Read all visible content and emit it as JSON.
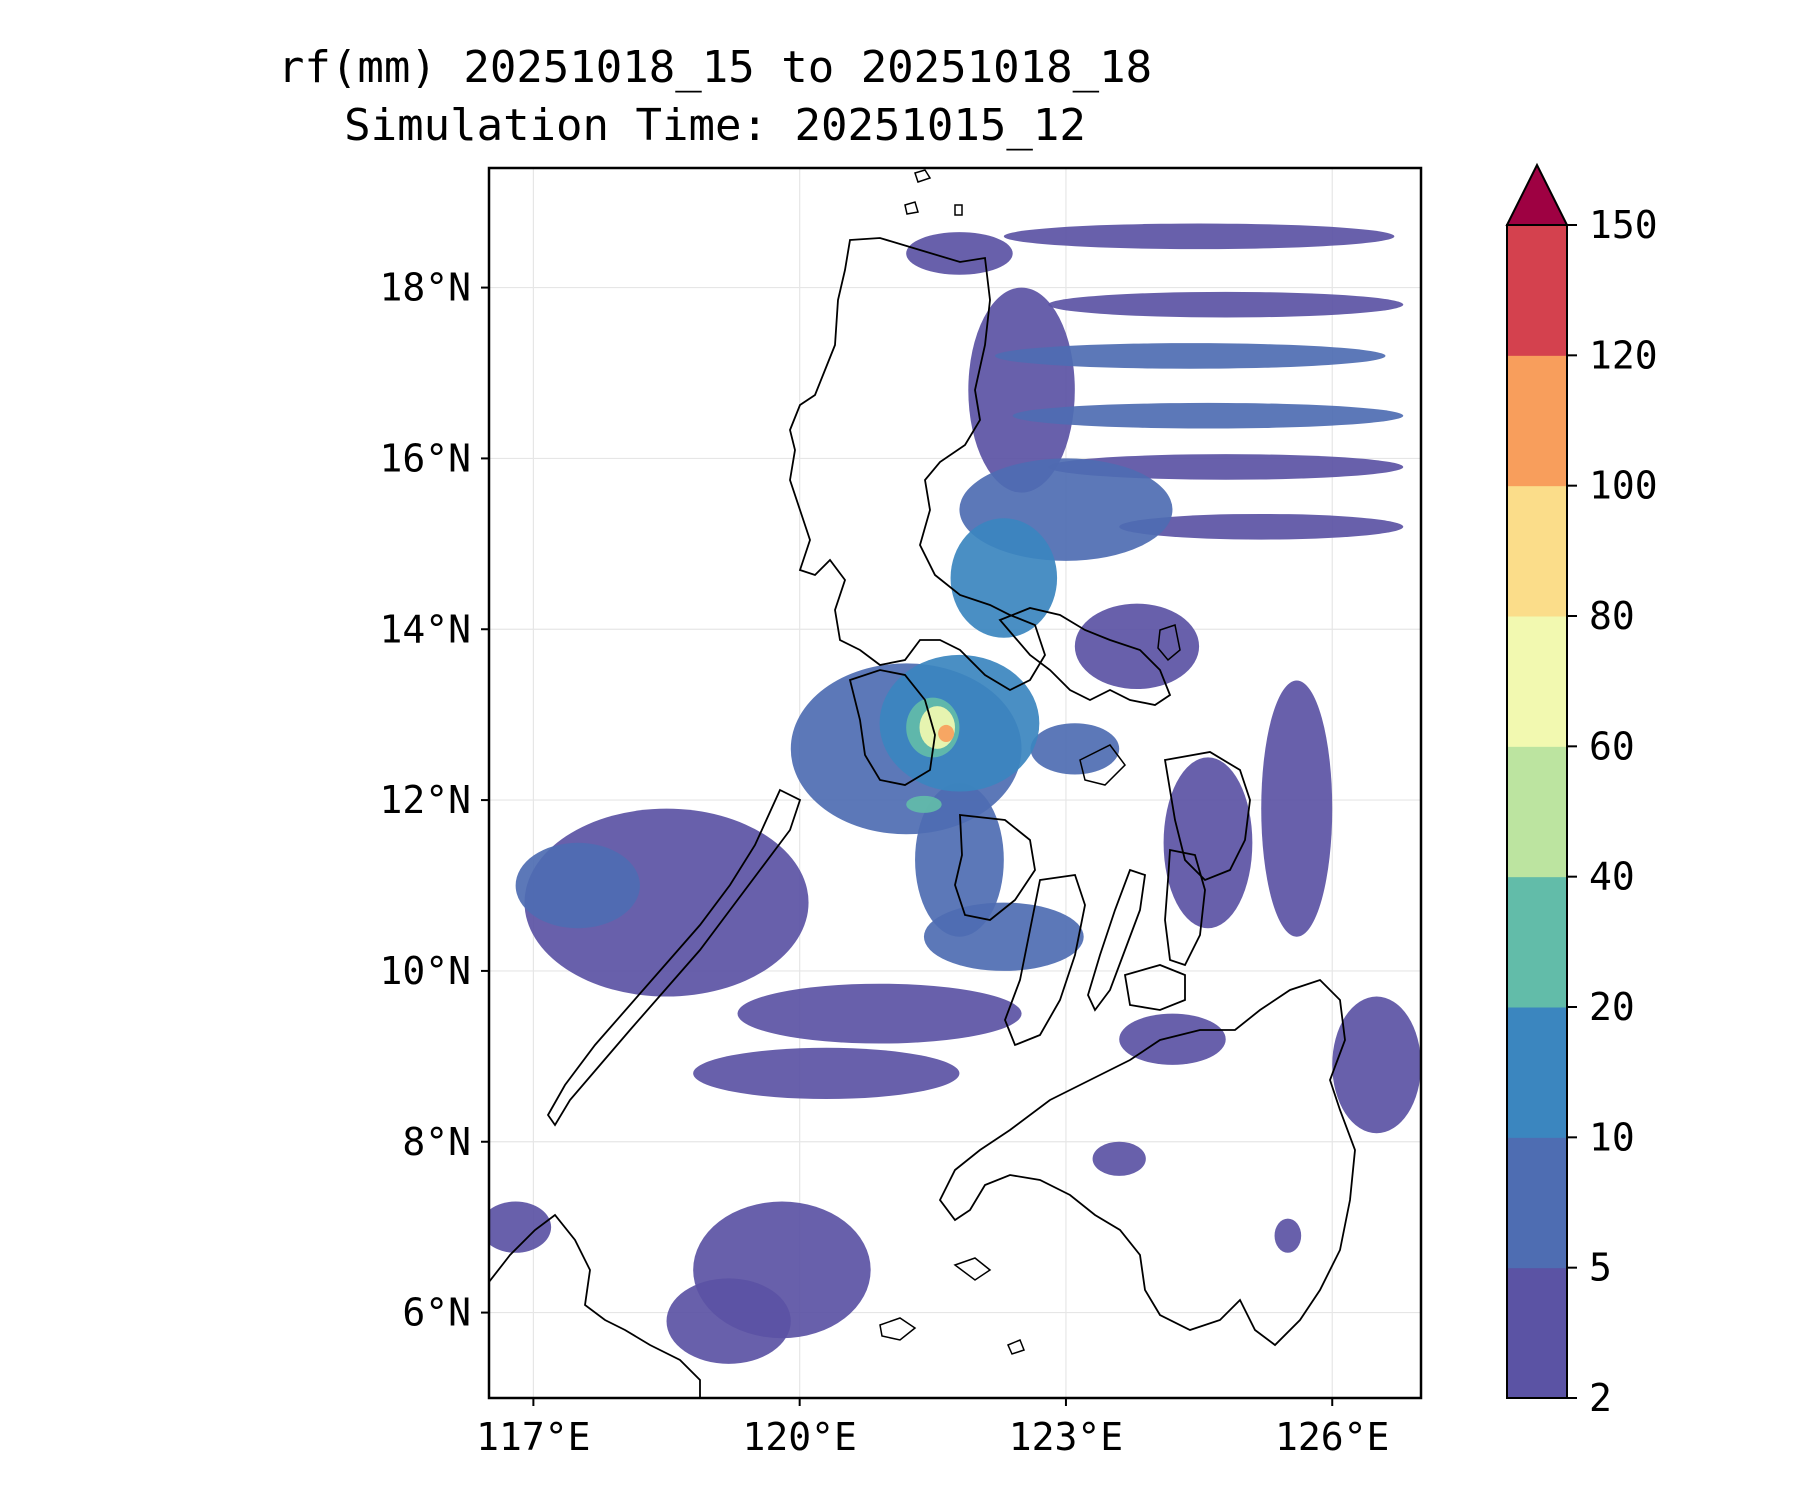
{
  "title": {
    "line1": "rf(mm) 20251018_15 to 20251018_18",
    "line2": "Simulation Time: 20251015_12"
  },
  "map": {
    "lon_range": [
      116.5,
      127.0
    ],
    "lat_range": [
      5.0,
      19.4
    ],
    "lon_ticks": [
      "117°E",
      "120°E",
      "123°E",
      "126°E"
    ],
    "lon_tick_values": [
      117,
      120,
      123,
      126
    ],
    "lat_ticks": [
      "6°N",
      "8°N",
      "10°N",
      "12°N",
      "14°N",
      "16°N",
      "18°N"
    ],
    "lat_tick_values": [
      6,
      8,
      10,
      12,
      14,
      16,
      18
    ],
    "grid": true,
    "coastline_color": "#000000"
  },
  "colorbar": {
    "levels": [
      "2",
      "5",
      "10",
      "20",
      "40",
      "60",
      "80",
      "100",
      "120",
      "150"
    ],
    "colors": [
      "#5b53a4",
      "#4e6db2",
      "#3b86bf",
      "#62bca9",
      "#bce4a0",
      "#f2f9b0",
      "#fbdd8a",
      "#f89e5c",
      "#d4414e",
      "#9e0142"
    ],
    "extend": "max"
  },
  "rain_cells": [
    {
      "lon": 121.8,
      "lat": 18.4,
      "rx": 0.6,
      "ry": 0.25,
      "level": 1
    },
    {
      "lon": 122.5,
      "lat": 16.8,
      "rx": 0.6,
      "ry": 1.2,
      "level": 1
    },
    {
      "lon": 124.5,
      "lat": 18.6,
      "rx": 2.2,
      "ry": 0.15,
      "level": 1
    },
    {
      "lon": 124.8,
      "lat": 17.8,
      "rx": 2.0,
      "ry": 0.15,
      "level": 1
    },
    {
      "lon": 124.4,
      "lat": 17.2,
      "rx": 2.2,
      "ry": 0.15,
      "level": 2
    },
    {
      "lon": 124.6,
      "lat": 16.5,
      "rx": 2.2,
      "ry": 0.15,
      "level": 2
    },
    {
      "lon": 124.8,
      "lat": 15.9,
      "rx": 2.0,
      "ry": 0.15,
      "level": 1
    },
    {
      "lon": 125.2,
      "lat": 15.2,
      "rx": 1.6,
      "ry": 0.15,
      "level": 1
    },
    {
      "lon": 123.0,
      "lat": 15.4,
      "rx": 1.2,
      "ry": 0.6,
      "level": 2
    },
    {
      "lon": 122.3,
      "lat": 14.6,
      "rx": 0.6,
      "ry": 0.7,
      "level": 3
    },
    {
      "lon": 121.8,
      "lat": 12.9,
      "rx": 0.9,
      "ry": 0.8,
      "level": 3
    },
    {
      "lon": 121.2,
      "lat": 12.6,
      "rx": 1.3,
      "ry": 1.0,
      "level": 2
    },
    {
      "lon": 121.5,
      "lat": 12.85,
      "rx": 0.3,
      "ry": 0.35,
      "level": 4
    },
    {
      "lon": 121.55,
      "lat": 12.85,
      "rx": 0.2,
      "ry": 0.25,
      "level": 6
    },
    {
      "lon": 121.65,
      "lat": 12.78,
      "rx": 0.09,
      "ry": 0.1,
      "level": 8
    },
    {
      "lon": 121.8,
      "lat": 11.3,
      "rx": 0.5,
      "ry": 0.9,
      "level": 2
    },
    {
      "lon": 122.3,
      "lat": 10.4,
      "rx": 0.9,
      "ry": 0.4,
      "level": 2
    },
    {
      "lon": 121.4,
      "lat": 11.95,
      "rx": 0.2,
      "ry": 0.1,
      "level": 4
    },
    {
      "lon": 123.8,
      "lat": 13.8,
      "rx": 0.7,
      "ry": 0.5,
      "level": 1
    },
    {
      "lon": 123.1,
      "lat": 12.6,
      "rx": 0.5,
      "ry": 0.3,
      "level": 2
    },
    {
      "lon": 125.6,
      "lat": 11.9,
      "rx": 0.4,
      "ry": 1.5,
      "level": 1
    },
    {
      "lon": 124.6,
      "lat": 11.5,
      "rx": 0.5,
      "ry": 1.0,
      "level": 1
    },
    {
      "lon": 118.5,
      "lat": 10.8,
      "rx": 1.6,
      "ry": 1.1,
      "level": 1
    },
    {
      "lon": 117.5,
      "lat": 11.0,
      "rx": 0.7,
      "ry": 0.5,
      "level": 2
    },
    {
      "lon": 120.9,
      "lat": 9.5,
      "rx": 1.6,
      "ry": 0.35,
      "level": 1
    },
    {
      "lon": 120.3,
      "lat": 8.8,
      "rx": 1.5,
      "ry": 0.3,
      "level": 1
    },
    {
      "lon": 119.8,
      "lat": 6.5,
      "rx": 1.0,
      "ry": 0.8,
      "level": 1
    },
    {
      "lon": 119.2,
      "lat": 5.9,
      "rx": 0.7,
      "ry": 0.5,
      "level": 1
    },
    {
      "lon": 126.5,
      "lat": 8.9,
      "rx": 0.5,
      "ry": 0.8,
      "level": 1
    },
    {
      "lon": 123.6,
      "lat": 7.8,
      "rx": 0.3,
      "ry": 0.2,
      "level": 1
    },
    {
      "lon": 124.2,
      "lat": 9.2,
      "rx": 0.6,
      "ry": 0.3,
      "level": 1
    },
    {
      "lon": 125.5,
      "lat": 6.9,
      "rx": 0.15,
      "ry": 0.2,
      "level": 1
    },
    {
      "lon": 116.8,
      "lat": 7.0,
      "rx": 0.4,
      "ry": 0.3,
      "level": 1
    }
  ]
}
